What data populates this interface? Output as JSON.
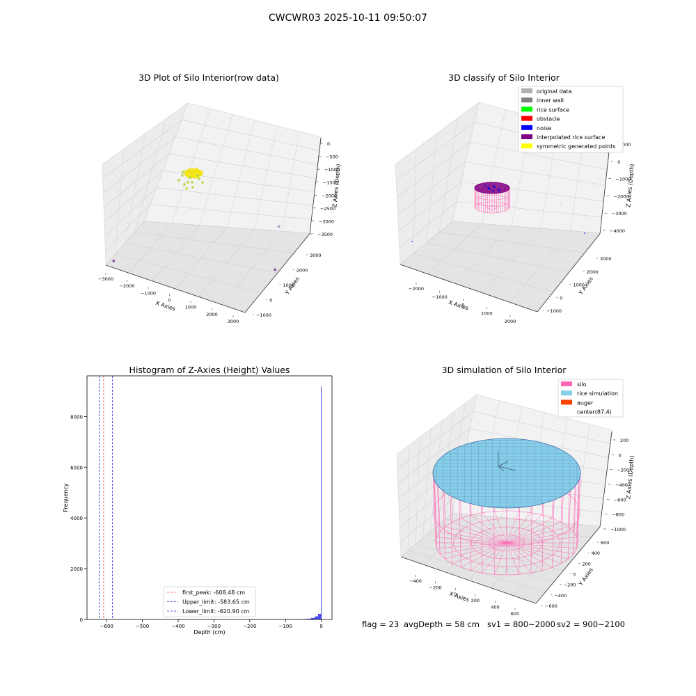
{
  "figure": {
    "suptitle": "CWCWR03 2025-10-11 09:50:07"
  },
  "status": {
    "flag": "flag = 23",
    "avg_depth": "avgDepth = 58 cm",
    "sv1": "sv1 = 800~2000",
    "sv2": "sv2 = 900~2100"
  },
  "colors": {
    "original": "#b0b0b0",
    "inner_wall": "#808080",
    "rice_surface": "#00ff00",
    "obstacle": "#ff0000",
    "noise": "#0000ff",
    "interpolated": "#800080",
    "symmetric": "#ffff00",
    "silo": "#ff69b4",
    "rice_sim": "#87ceeb",
    "auger": "#ff4500",
    "hist_bar": "#4a4aee",
    "peak_line": "#ff4d4d",
    "limit_line": "#2222cc"
  },
  "chart_data": [
    {
      "type": "scatter",
      "title": "3D Plot of Silo Interior(row data)",
      "xlabel": "X Axies",
      "ylabel": "Y Axies",
      "zlabel": "Z Axies (Depth)",
      "x_ticks": [
        "−3000",
        "−2000",
        "−1000",
        "0",
        "1000",
        "2000",
        "3000"
      ],
      "y_ticks": [
        "−1000",
        "0",
        "1000",
        "2000",
        "3000"
      ],
      "z_ticks": [
        "0",
        "−500",
        "−1000",
        "−1500",
        "−2000",
        "−2500",
        "−3000",
        "−3500"
      ],
      "points": [
        {
          "x": -2700,
          "y": -900,
          "z": -3300,
          "color": "#8e5fa8"
        },
        {
          "x": 2600,
          "y": 1500,
          "z": -2200,
          "color": "#b9a0c8"
        },
        {
          "x": 2900,
          "y": 1000,
          "z": -3400,
          "color": "#8e5fa8"
        }
      ]
    },
    {
      "type": "scatter",
      "title": "3D classify of Silo Interior",
      "xlabel": "X Axies",
      "ylabel": "Y Axies",
      "zlabel": "Z Axies (Depth)",
      "x_ticks": [
        "−2000",
        "−1000",
        "0",
        "1000",
        "2000"
      ],
      "y_ticks": [
        "−1000",
        "0",
        "1000",
        "2000",
        "3000"
      ],
      "z_ticks": [
        "1000",
        "0",
        "−1000",
        "−2000",
        "−3000",
        "−4000"
      ],
      "legend_position": "top-right",
      "legend": [
        {
          "label": "original data",
          "color": "#b0b0b0"
        },
        {
          "label": "inner wall",
          "color": "#808080"
        },
        {
          "label": "rice surface",
          "color": "#00ff00"
        },
        {
          "label": "obstacle",
          "color": "#ff0000"
        },
        {
          "label": "noise",
          "color": "#0000ff"
        },
        {
          "label": "interpolated rice surface",
          "color": "#800080"
        },
        {
          "label": "symmetric generated points",
          "color": "#ffff00"
        }
      ]
    },
    {
      "type": "bar",
      "title": "Histogram of Z-Axies (Height) Values",
      "xlabel": "Depth (cm)",
      "ylabel": "Frequency",
      "xlim": [
        -655,
        30
      ],
      "ylim": [
        0,
        9600
      ],
      "x_ticks": [
        -600,
        -500,
        -400,
        -300,
        -200,
        -100,
        0
      ],
      "x_tick_labels": [
        "−600",
        "−500",
        "−400",
        "−300",
        "−200",
        "−100",
        "0"
      ],
      "y_ticks": [
        0,
        2000,
        4000,
        6000,
        8000
      ],
      "bins": [
        {
          "x0": -62,
          "x1": -51,
          "count": 10
        },
        {
          "x0": -51,
          "x1": -40,
          "count": 15
        },
        {
          "x0": -40,
          "x1": -29,
          "count": 30
        },
        {
          "x0": -29,
          "x1": -18,
          "count": 60
        },
        {
          "x0": -18,
          "x1": -9,
          "count": 120
        },
        {
          "x0": -9,
          "x1": -1,
          "count": 220
        },
        {
          "x0": -1,
          "x1": 0.5,
          "count": 9180
        }
      ],
      "vlines": [
        {
          "x": -608.48,
          "label": "first_peak: -608.48 cm",
          "color": "#ff4d4d"
        },
        {
          "x": -583.65,
          "label": "Upper_limit: -583.65 cm",
          "color": "#2222cc"
        },
        {
          "x": -620.9,
          "label": "Lower_limit: -620.90 cm",
          "color": "#2222cc"
        }
      ],
      "legend_position": "lower-center"
    },
    {
      "type": "scatter",
      "title": "3D simulation of Silo Interior",
      "xlabel": "X Axies",
      "ylabel": "Y Axies",
      "zlabel": "Z Axies (Depth)",
      "x_ticks": [
        "−400",
        "−200",
        "0",
        "200",
        "400",
        "600"
      ],
      "y_ticks": [
        "−600",
        "−400",
        "−200",
        "0",
        "200",
        "400",
        "600"
      ],
      "z_ticks": [
        "200",
        "0",
        "−200",
        "−400",
        "−600",
        "−800",
        "−1000"
      ],
      "legend_position": "top-right",
      "legend": [
        {
          "label": "silo",
          "color": "#ff69b4"
        },
        {
          "label": "rice simulation",
          "color": "#87ceeb"
        },
        {
          "label": "auger",
          "color": "#ff4500"
        },
        {
          "label": "center(87,4)",
          "color": ""
        }
      ]
    }
  ]
}
